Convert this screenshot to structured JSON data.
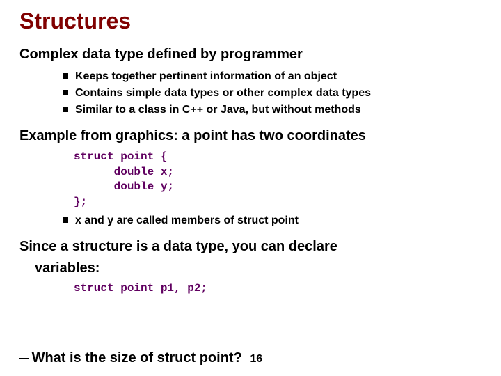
{
  "title": {
    "text": "Structures",
    "color": "#800000",
    "fontsize": 32
  },
  "section1": {
    "heading": "Complex data type defined by programmer",
    "bullets": [
      "Keeps together pertinent information of an object",
      "Contains simple data types or other complex data types",
      "Similar to a class in C++ or Java, but without methods"
    ]
  },
  "section2": {
    "heading": "Example from graphics:  a point has two coordinates",
    "code": "struct point {\n      double x;\n      double y;\n};",
    "code_color": "#600060",
    "bullets": [
      "x and y are called members of struct point"
    ]
  },
  "section3": {
    "heading_line1": "Since a structure is a data type, you can declare",
    "heading_line2": "variables:",
    "code": "struct point p1, p2;"
  },
  "question": {
    "text": "What is the size of struct point?",
    "page": "16"
  },
  "colors": {
    "title": "#800000",
    "code": "#600060",
    "text": "#000000",
    "background": "#ffffff"
  }
}
